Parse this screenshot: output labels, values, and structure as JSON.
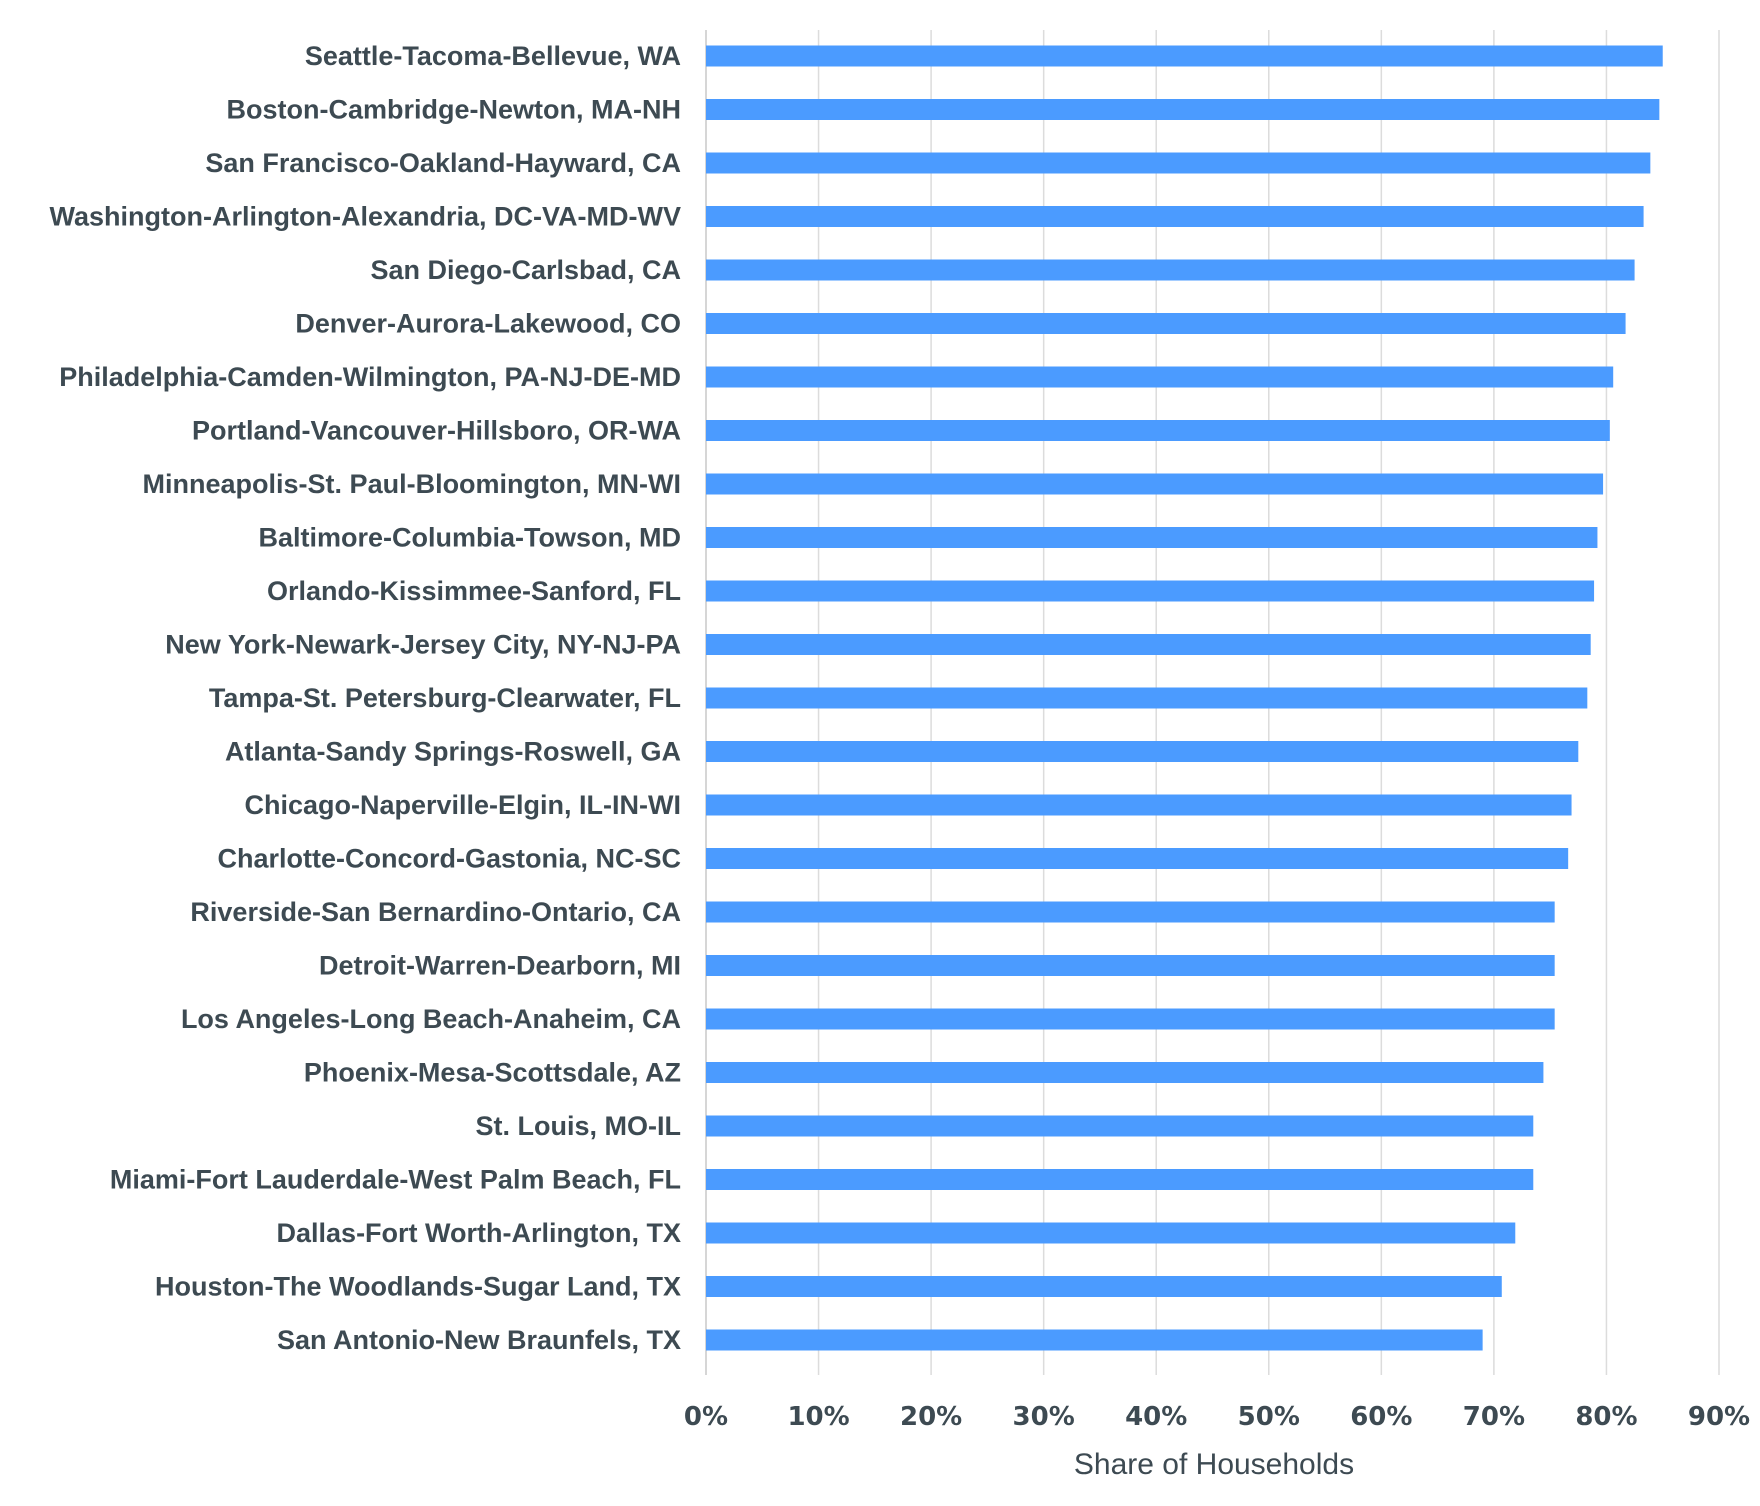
{
  "chart_data": {
    "type": "bar",
    "orientation": "horizontal",
    "categories": [
      "Seattle-Tacoma-Bellevue, WA",
      "Boston-Cambridge-Newton, MA-NH",
      "San Francisco-Oakland-Hayward, CA",
      "Washington-Arlington-Alexandria, DC-VA-MD-WV",
      "San Diego-Carlsbad, CA",
      "Denver-Aurora-Lakewood, CO",
      "Philadelphia-Camden-Wilmington, PA-NJ-DE-MD",
      "Portland-Vancouver-Hillsboro, OR-WA",
      "Minneapolis-St. Paul-Bloomington, MN-WI",
      "Baltimore-Columbia-Towson, MD",
      "Orlando-Kissimmee-Sanford, FL",
      "New York-Newark-Jersey City, NY-NJ-PA",
      "Tampa-St. Petersburg-Clearwater, FL",
      "Atlanta-Sandy Springs-Roswell, GA",
      "Chicago-Naperville-Elgin, IL-IN-WI",
      "Charlotte-Concord-Gastonia, NC-SC",
      "Riverside-San Bernardino-Ontario, CA",
      "Detroit-Warren-Dearborn, MI",
      "Los Angeles-Long Beach-Anaheim, CA",
      "Phoenix-Mesa-Scottsdale, AZ",
      "St. Louis, MO-IL",
      "Miami-Fort Lauderdale-West Palm Beach, FL",
      "Dallas-Fort Worth-Arlington, TX",
      "Houston-The Woodlands-Sugar Land, TX",
      "San Antonio-New Braunfels, TX"
    ],
    "values": [
      85.0,
      84.7,
      83.9,
      83.3,
      82.5,
      81.7,
      80.6,
      80.3,
      79.7,
      79.2,
      78.9,
      78.6,
      78.3,
      77.5,
      76.9,
      76.6,
      75.4,
      75.4,
      75.4,
      74.4,
      73.5,
      73.5,
      71.9,
      70.7,
      69.0
    ],
    "xlabel": "Share of Households",
    "ylabel": "",
    "xlim": [
      0,
      90
    ],
    "xticks": [
      "0%",
      "10%",
      "20%",
      "30%",
      "40%",
      "50%",
      "60%",
      "70%",
      "80%",
      "90%"
    ],
    "grid": "vertical",
    "bar_color": "#4b9bff"
  }
}
